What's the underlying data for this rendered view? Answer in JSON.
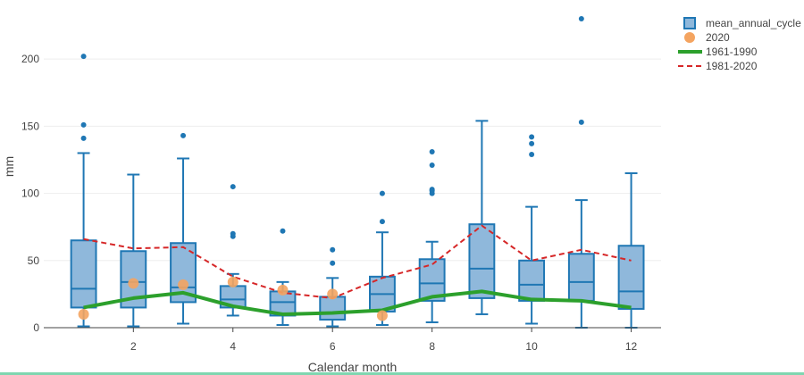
{
  "chart_data": {
    "type": "box",
    "xlabel": "Calendar month",
    "ylabel": "mm",
    "xlim": [
      0.2,
      12.6
    ],
    "ylim": [
      0,
      240
    ],
    "x_ticks": [
      2,
      4,
      6,
      8,
      10,
      12
    ],
    "y_ticks": [
      0,
      50,
      100,
      150,
      200
    ],
    "grid": "horizontal",
    "legend_position": "top-right",
    "colors": {
      "box_fill": "#8fb8db",
      "box_line": "#1f77b4",
      "point_2020": "#f4a460",
      "line_1961_1990": "#2ca02c",
      "line_1981_2020": "#d62728"
    },
    "legend": [
      {
        "label": "mean_annual_cycle",
        "kind": "box"
      },
      {
        "label": "2020",
        "kind": "point"
      },
      {
        "label": "1961-1990",
        "kind": "solid"
      },
      {
        "label": "1981-2020",
        "kind": "dashed"
      }
    ],
    "boxes": [
      {
        "month": 1,
        "min": 1,
        "q1": 15,
        "median": 29,
        "q3": 65,
        "max": 130,
        "outliers": [
          141,
          151,
          202
        ]
      },
      {
        "month": 2,
        "min": 1,
        "q1": 15,
        "median": 34,
        "q3": 57,
        "max": 114,
        "outliers": []
      },
      {
        "month": 3,
        "min": 3,
        "q1": 19,
        "median": 30,
        "q3": 63,
        "max": 126,
        "outliers": [
          143
        ]
      },
      {
        "month": 4,
        "min": 9,
        "q1": 15,
        "median": 21,
        "q3": 31,
        "max": 40,
        "outliers": [
          68,
          70,
          105
        ]
      },
      {
        "month": 5,
        "min": 2,
        "q1": 9,
        "median": 19,
        "q3": 27,
        "max": 34,
        "outliers": [
          72
        ]
      },
      {
        "month": 6,
        "min": 1,
        "q1": 6,
        "median": 11,
        "q3": 23,
        "max": 37,
        "outliers": [
          48,
          58
        ]
      },
      {
        "month": 7,
        "min": 2,
        "q1": 12,
        "median": 25,
        "q3": 38,
        "max": 71,
        "outliers": [
          79,
          100
        ]
      },
      {
        "month": 8,
        "min": 4,
        "q1": 20,
        "median": 33,
        "q3": 51,
        "max": 64,
        "outliers": [
          100,
          102,
          103,
          121,
          131
        ]
      },
      {
        "month": 9,
        "min": 10,
        "q1": 22,
        "median": 44,
        "q3": 77,
        "max": 154,
        "outliers": []
      },
      {
        "month": 10,
        "min": 3,
        "q1": 20,
        "median": 32,
        "q3": 50,
        "max": 90,
        "outliers": [
          129,
          137,
          142
        ]
      },
      {
        "month": 11,
        "min": 0,
        "q1": 20,
        "median": 34,
        "q3": 55,
        "max": 95,
        "outliers": [
          153,
          230
        ]
      },
      {
        "month": 12,
        "min": 0,
        "q1": 14,
        "median": 27,
        "q3": 61,
        "max": 115,
        "outliers": []
      }
    ],
    "series": [
      {
        "name": "2020",
        "type": "scatter",
        "x": [
          1,
          2,
          3,
          4,
          5,
          6,
          7
        ],
        "y": [
          10,
          33,
          32,
          34,
          28,
          25,
          9
        ]
      },
      {
        "name": "1961-1990",
        "type": "line",
        "x": [
          1,
          2,
          3,
          4,
          5,
          6,
          7,
          8,
          9,
          10,
          11,
          12
        ],
        "y": [
          15,
          22,
          26,
          16,
          10,
          11,
          13,
          23,
          27,
          21,
          20,
          15
        ]
      },
      {
        "name": "1981-2020",
        "type": "line",
        "x": [
          1,
          2,
          3,
          4,
          5,
          6,
          7,
          8,
          9,
          10,
          11,
          12
        ],
        "y": [
          66,
          59,
          60,
          38,
          26,
          22,
          37,
          47,
          76,
          50,
          58,
          50
        ]
      }
    ]
  }
}
